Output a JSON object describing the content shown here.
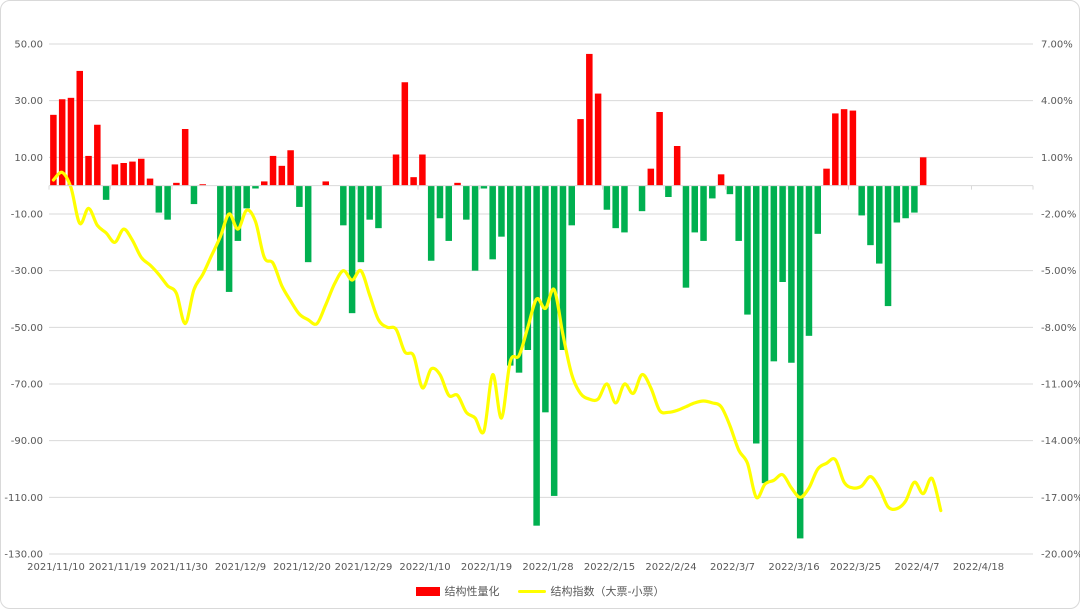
{
  "chart_data": {
    "type": "bar+line",
    "title": "",
    "left_axis": {
      "min": -130,
      "max": 50,
      "step": 20,
      "ticks": [
        "50.00",
        "30.00",
        "10.00",
        "-10.00",
        "-30.00",
        "-50.00",
        "-70.00",
        "-90.00",
        "-110.00",
        "-130.00"
      ]
    },
    "right_axis": {
      "min": -20,
      "max": 7,
      "step": 3,
      "ticks": [
        "7.00%",
        "4.00%",
        "1.00%",
        "-2.00%",
        "-5.00%",
        "-8.00%",
        "-11.00%",
        "-14.00%",
        "-17.00%",
        "-20.00%"
      ]
    },
    "x_labels": [
      "2021/11/10",
      "2021/11/19",
      "2021/11/30",
      "2021/12/9",
      "2021/12/20",
      "2021/12/29",
      "2022/1/10",
      "2022/1/19",
      "2022/1/28",
      "2022/2/15",
      "2022/2/24",
      "2022/3/7",
      "2022/3/16",
      "2022/3/25",
      "2022/4/7",
      "2022/4/18"
    ],
    "x_label_every": 7,
    "total_slots": 112,
    "grid": true,
    "colors": {
      "positive": "#ff0000",
      "negative": "#00b050",
      "line": "#ffff00",
      "grid": "#d9d9d9"
    },
    "series": [
      {
        "name": "结构性量化",
        "axis": "left",
        "values": [
          25,
          30.5,
          31,
          40.5,
          10.5,
          21.5,
          -5,
          7.5,
          8,
          8.5,
          9.5,
          2.5,
          -9.5,
          -12,
          1,
          20,
          -6.5,
          0.5,
          0,
          -30,
          -37.5,
          -19.5,
          -8,
          -1,
          1.5,
          10.5,
          7,
          12.5,
          -7.5,
          -27,
          0,
          1.5,
          0,
          -14,
          -45,
          -27,
          -12,
          -15,
          0,
          11,
          36.5,
          3,
          11,
          -26.5,
          -11.5,
          -19.5,
          1,
          -12,
          -30,
          -1,
          -26,
          -18,
          -63.5,
          -66,
          -58,
          -120,
          -80,
          -109.5,
          -58,
          -14,
          23.5,
          46.5,
          32.5,
          -8.5,
          -15,
          -16.5,
          0,
          -9,
          6,
          26,
          -4,
          14,
          -36,
          -16.5,
          -19.5,
          -4.5,
          4,
          -3,
          -19.5,
          -45.5,
          -91,
          -105,
          -62,
          -34,
          -62.5,
          -124.5,
          -53,
          -17,
          6,
          25.5,
          27,
          26.5,
          -10.5,
          -21,
          -27.5,
          -42.5,
          -13,
          -11.5,
          -9.5,
          10,
          0,
          0,
          0,
          0,
          0,
          0,
          0,
          0,
          0,
          0,
          0,
          0
        ]
      },
      {
        "name": "结构指数（大票-小票）",
        "axis": "right",
        "values": [
          -0.2,
          0.2,
          -0.6,
          -2.5,
          -1.7,
          -2.6,
          -3.0,
          -3.5,
          -2.8,
          -3.4,
          -4.3,
          -4.7,
          -5.2,
          -5.8,
          -6.2,
          -7.8,
          -6.0,
          -5.2,
          -4.2,
          -3.2,
          -2.0,
          -2.8,
          -1.8,
          -2.4,
          -4.3,
          -4.6,
          -5.8,
          -6.6,
          -7.3,
          -7.6,
          -7.8,
          -6.8,
          -5.7,
          -5.0,
          -5.5,
          -5.0,
          -6.3,
          -7.6,
          -8.0,
          -8.1,
          -9.3,
          -9.5,
          -11.2,
          -10.2,
          -10.5,
          -11.6,
          -11.6,
          -12.5,
          -12.8,
          -13.5,
          -10.5,
          -12.8,
          -9.8,
          -9.5,
          -8.0,
          -6.5,
          -7.0,
          -6.0,
          -8.4,
          -10.5,
          -11.5,
          -11.8,
          -11.8,
          -11.0,
          -12.0,
          -11.0,
          -11.5,
          -10.5,
          -11.2,
          -12.4,
          -12.5,
          -12.4,
          -12.2,
          -12.0,
          -11.9,
          -12.0,
          -12.2,
          -13.2,
          -14.5,
          -15.2,
          -17.0,
          -16.3,
          -16.1,
          -15.8,
          -16.5,
          -17.0,
          -16.5,
          -15.5,
          -15.2,
          -15.0,
          -16.2,
          -16.5,
          -16.4,
          -15.9,
          -16.5,
          -17.5,
          -17.6,
          -17.2,
          -16.2,
          -16.8,
          -16.0,
          -17.7
        ]
      }
    ],
    "legend": {
      "position": "bottom"
    }
  }
}
